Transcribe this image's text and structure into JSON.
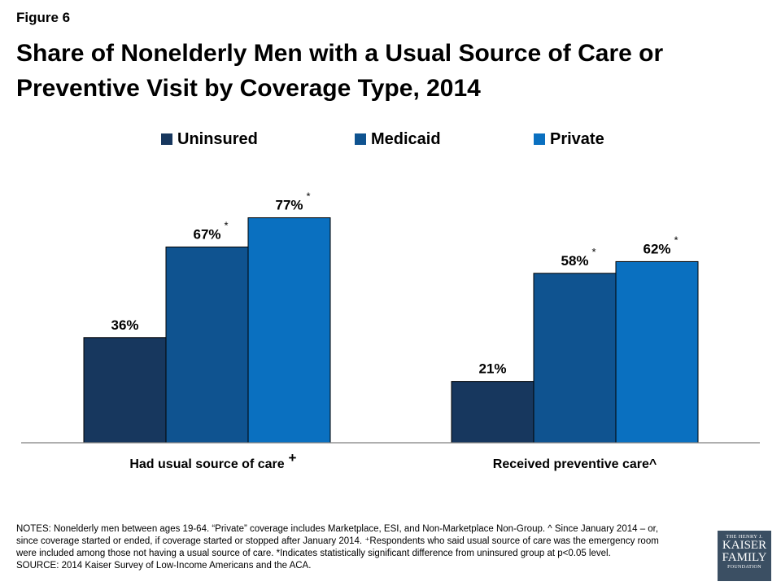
{
  "figure_label": "Figure 6",
  "title_line1": "Share of Nonelderly Men with a Usual Source of Care or",
  "title_line2": "Preventive Visit by Coverage Type, 2014",
  "chart_data": {
    "type": "bar",
    "categories": [
      "Had usual source of care",
      "Received preventive care^"
    ],
    "category_marks": [
      "+",
      ""
    ],
    "series": [
      {
        "name": "Uninsured",
        "color": "#17375e",
        "values": [
          36,
          21
        ],
        "labels": [
          "36%",
          "21%"
        ],
        "marks": [
          "",
          ""
        ]
      },
      {
        "name": "Medicaid",
        "color": "#0f5390",
        "values": [
          67,
          58
        ],
        "labels": [
          "67%",
          "58%"
        ],
        "marks": [
          "*",
          "*"
        ]
      },
      {
        "name": "Private",
        "color": "#0a70c0",
        "values": [
          77,
          62
        ],
        "labels": [
          "77%",
          "62%"
        ],
        "marks": [
          "*",
          "*"
        ]
      }
    ],
    "ylim": [
      0,
      100
    ],
    "grid": false,
    "legend": "top"
  },
  "notes": {
    "line1": "NOTES: Nonelderly men between ages 19-64. “Private” coverage includes Marketplace, ESI, and Non-Marketplace Non-Group.  ^ Since January 2014 – or,",
    "line2": "since coverage started or ended, if coverage started or stopped after January 2014. ⁺Respondents who said usual source of care was the emergency room",
    "line3": "were included among those not having a usual source of care. *Indicates statistically significant difference from uninsured group at p<0.05 level.",
    "line4": "SOURCE: 2014 Kaiser Survey of Low-Income Americans and the ACA."
  },
  "logo": {
    "line1": "THE HENRY J.",
    "line2": "KAISER",
    "line3": "FAMILY",
    "line4": "FOUNDATION"
  }
}
